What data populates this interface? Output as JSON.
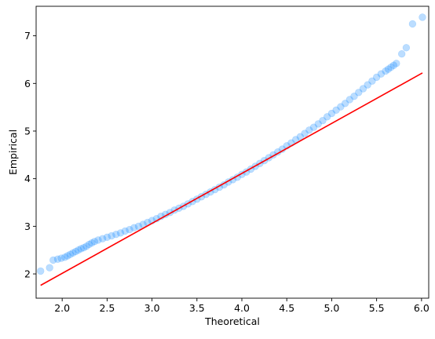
{
  "chart_data": {
    "type": "scatter",
    "xlabel": "Theoretical",
    "ylabel": "Empirical",
    "xlim": [
      1.71,
      6.08
    ],
    "ylim": [
      1.49,
      7.62
    ],
    "xticks": [
      2.0,
      2.5,
      3.0,
      3.5,
      4.0,
      4.5,
      5.0,
      5.5,
      6.0
    ],
    "xtick_labels": [
      "2.0",
      "2.5",
      "3.0",
      "3.5",
      "4.0",
      "4.5",
      "5.0",
      "5.5",
      "6.0"
    ],
    "yticks": [
      2,
      3,
      4,
      5,
      6,
      7
    ],
    "ytick_labels": [
      "2",
      "3",
      "4",
      "5",
      "6",
      "7"
    ],
    "grid": false,
    "series": [
      {
        "kind": "points",
        "color": "#1E90FF",
        "alpha": 0.3,
        "x": [
          1.76,
          1.86,
          1.9,
          1.95,
          1.99,
          2.03,
          2.06,
          2.09,
          2.12,
          2.15,
          2.18,
          2.21,
          2.24,
          2.27,
          2.3,
          2.33,
          2.36,
          2.4,
          2.45,
          2.5,
          2.55,
          2.6,
          2.65,
          2.7,
          2.75,
          2.8,
          2.85,
          2.9,
          2.95,
          3.0,
          3.05,
          3.1,
          3.15,
          3.2,
          3.25,
          3.3,
          3.35,
          3.4,
          3.45,
          3.5,
          3.55,
          3.6,
          3.65,
          3.7,
          3.75,
          3.8,
          3.85,
          3.9,
          3.95,
          4.0,
          4.05,
          4.1,
          4.15,
          4.2,
          4.25,
          4.3,
          4.35,
          4.4,
          4.45,
          4.5,
          4.55,
          4.6,
          4.65,
          4.7,
          4.75,
          4.8,
          4.85,
          4.9,
          4.95,
          5.0,
          5.05,
          5.1,
          5.15,
          5.2,
          5.25,
          5.3,
          5.35,
          5.4,
          5.45,
          5.5,
          5.55,
          5.6,
          5.63,
          5.66,
          5.69,
          5.72,
          5.78,
          5.83,
          5.9,
          6.01
        ],
        "y": [
          2.06,
          2.13,
          2.29,
          2.31,
          2.33,
          2.35,
          2.38,
          2.41,
          2.44,
          2.47,
          2.5,
          2.53,
          2.55,
          2.58,
          2.62,
          2.65,
          2.68,
          2.71,
          2.74,
          2.77,
          2.8,
          2.83,
          2.86,
          2.9,
          2.93,
          2.97,
          3.0,
          3.04,
          3.08,
          3.12,
          3.16,
          3.21,
          3.25,
          3.29,
          3.34,
          3.38,
          3.42,
          3.47,
          3.52,
          3.57,
          3.62,
          3.67,
          3.72,
          3.77,
          3.82,
          3.87,
          3.93,
          3.98,
          4.03,
          4.09,
          4.14,
          4.2,
          4.26,
          4.32,
          4.38,
          4.44,
          4.5,
          4.56,
          4.62,
          4.69,
          4.75,
          4.82,
          4.88,
          4.95,
          5.02,
          5.08,
          5.15,
          5.22,
          5.3,
          5.37,
          5.44,
          5.51,
          5.58,
          5.66,
          5.73,
          5.81,
          5.89,
          5.97,
          6.05,
          6.13,
          6.2,
          6.26,
          6.3,
          6.34,
          6.38,
          6.42,
          6.62,
          6.75,
          7.25,
          7.39
        ]
      },
      {
        "kind": "line",
        "color": "#FF0000",
        "x": [
          1.76,
          6.01
        ],
        "y": [
          1.76,
          6.22
        ]
      }
    ]
  }
}
